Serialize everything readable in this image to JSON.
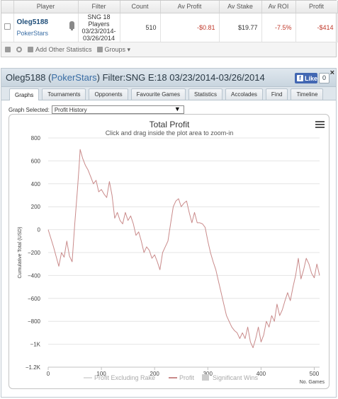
{
  "stats_table": {
    "headers": [
      "Player",
      "Filter",
      "Count",
      "Av Profit",
      "Av Stake",
      "Av ROI",
      "Profit"
    ],
    "row": {
      "player": "Oleg5188",
      "site": "PokerStars",
      "filter_lines": [
        "SNG 18",
        "Players",
        "03/23/2014-",
        "03/26/2014"
      ],
      "count": "510",
      "av_profit": "-$0.81",
      "av_stake": "$19.77",
      "av_roi": "-7.5%",
      "profit": "-$414"
    },
    "toolbar": {
      "add_stats_label": "Add Other Statistics",
      "groups_label": "Groups ▾"
    }
  },
  "panel": {
    "player": "Oleg5188",
    "site": "PokerStars",
    "filter_text": "Filter:SNG E:18 03/23/2014-03/26/2014",
    "fb_like_label": "Like",
    "fb_count": "0",
    "close_glyph": "×",
    "tabs": [
      "Graphs",
      "Tournaments",
      "Opponents",
      "Favourite Games",
      "Statistics",
      "Accolades",
      "Find",
      "Timeline"
    ],
    "active_tab": 0,
    "graph_selected_label": "Graph Selected:",
    "graph_selected_value": "Profit History",
    "select_arrow": "▼"
  },
  "chart_data": {
    "type": "line",
    "title": "Total Profit",
    "subtitle": "Click and drag inside the plot area to zoom-in",
    "ylabel": "Cumulative Total (USD)",
    "xlabel": "No. Games",
    "xlim": [
      0,
      510
    ],
    "ylim": [
      -1200,
      800
    ],
    "x_ticks": [
      0,
      100,
      200,
      300,
      400,
      500
    ],
    "y_ticks": [
      800,
      600,
      400,
      200,
      0,
      -200,
      -400,
      -600,
      -800,
      -1000,
      -1200
    ],
    "y_tick_labels": [
      "800",
      "600",
      "400",
      "200",
      "0",
      "−200",
      "−400",
      "−600",
      "−800",
      "−1K",
      "−1.2K"
    ],
    "grid": true,
    "line_color": "#c98a8a",
    "legend": [
      "Profit Excluding Rake",
      "Profit",
      "Significant Wins"
    ],
    "series": [
      {
        "name": "Profit",
        "x": [
          0,
          10,
          20,
          25,
          30,
          35,
          40,
          45,
          50,
          55,
          58,
          60,
          65,
          70,
          75,
          80,
          85,
          90,
          95,
          100,
          105,
          110,
          115,
          120,
          125,
          130,
          135,
          140,
          145,
          150,
          155,
          160,
          165,
          170,
          175,
          180,
          185,
          190,
          195,
          200,
          205,
          210,
          215,
          220,
          225,
          230,
          235,
          240,
          245,
          250,
          255,
          260,
          265,
          270,
          275,
          280,
          285,
          290,
          295,
          300,
          305,
          310,
          315,
          320,
          325,
          330,
          335,
          340,
          345,
          350,
          355,
          360,
          365,
          370,
          375,
          380,
          385,
          390,
          395,
          400,
          405,
          410,
          415,
          420,
          425,
          430,
          435,
          440,
          445,
          450,
          455,
          460,
          465,
          470,
          475,
          480,
          485,
          490,
          495,
          500,
          505,
          510
        ],
        "values": [
          0,
          -150,
          -320,
          -200,
          -240,
          -100,
          -230,
          -280,
          50,
          350,
          550,
          700,
          620,
          560,
          520,
          460,
          400,
          430,
          330,
          350,
          310,
          280,
          420,
          300,
          100,
          150,
          80,
          50,
          150,
          80,
          120,
          50,
          -50,
          -20,
          -100,
          -200,
          -150,
          -180,
          -250,
          -220,
          -280,
          -350,
          -200,
          -150,
          -100,
          50,
          200,
          250,
          270,
          200,
          230,
          250,
          150,
          60,
          150,
          60,
          60,
          50,
          20,
          -100,
          -200,
          -280,
          -350,
          -450,
          -550,
          -650,
          -750,
          -800,
          -850,
          -880,
          -900,
          -950,
          -900,
          -950,
          -850,
          -980,
          -1030,
          -950,
          -850,
          -980,
          -920,
          -800,
          -850,
          -750,
          -800,
          -650,
          -750,
          -700,
          -620,
          -550,
          -620,
          -500,
          -400,
          -250,
          -430,
          -350,
          -250,
          -300,
          -380,
          -420,
          -300,
          -400
        ]
      }
    ]
  }
}
